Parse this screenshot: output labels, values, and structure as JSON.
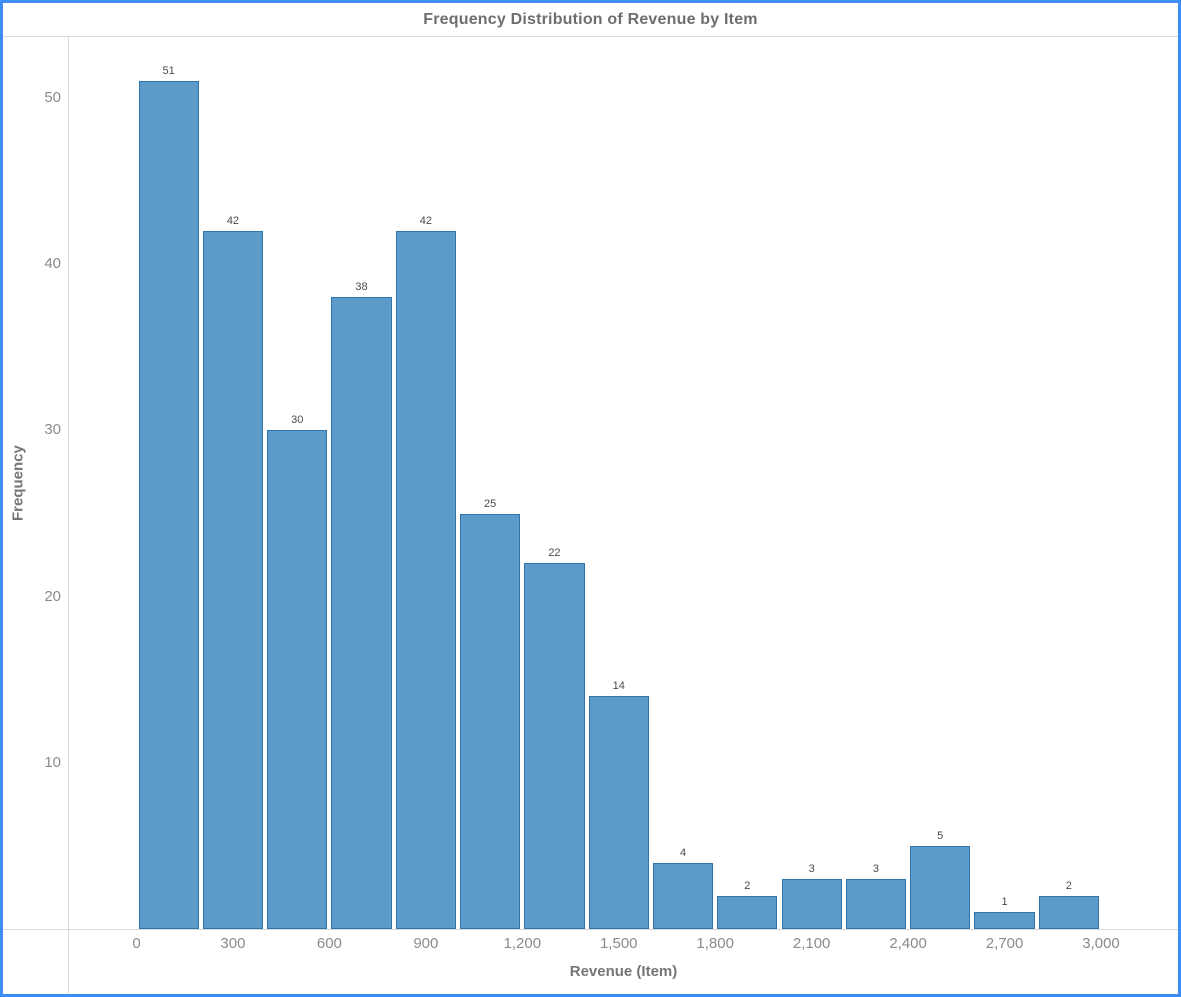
{
  "title": "Frequency Distribution of Revenue by Item",
  "axes": {
    "x_label": "Revenue (Item)",
    "y_label": "Frequency"
  },
  "colors": {
    "frame_border": "#3e8df5",
    "line_color": "#d9d9d9",
    "title_color": "#6e6e6e",
    "tick_color": "#8b8b8b",
    "axis_title_color": "#767676",
    "value_label_color": "#4a4a4a",
    "bar_fill": "#5c9bc9",
    "bar_stroke": "#2f77ab"
  },
  "chart_data": {
    "type": "bar",
    "subtype": "histogram",
    "title": "Frequency Distribution of Revenue by Item",
    "xlabel": "Revenue (Item)",
    "ylabel": "Frequency",
    "bin_width": 200,
    "bin_edges": [
      0,
      200,
      400,
      600,
      800,
      1000,
      1200,
      1400,
      1600,
      1800,
      2000,
      2200,
      2400,
      2600,
      2800,
      3000
    ],
    "counts": [
      51,
      42,
      30,
      38,
      42,
      25,
      22,
      14,
      4,
      2,
      3,
      3,
      5,
      1,
      2
    ],
    "x_tick_values": [
      0,
      300,
      600,
      900,
      1200,
      1500,
      1800,
      2100,
      2400,
      2700,
      3000
    ],
    "x_tick_labels": [
      "0",
      "300",
      "600",
      "900",
      "1,200",
      "1,500",
      "1,800",
      "2,100",
      "2,400",
      "2,700",
      "3,000"
    ],
    "y_tick_values": [
      10,
      20,
      30,
      40,
      50
    ],
    "y_tick_labels": [
      "10",
      "20",
      "30",
      "40",
      "50"
    ],
    "xlim": [
      0,
      3240
    ],
    "ylim": [
      0,
      53.7
    ],
    "grid": false,
    "legend": null,
    "value_labels_shown": true
  }
}
